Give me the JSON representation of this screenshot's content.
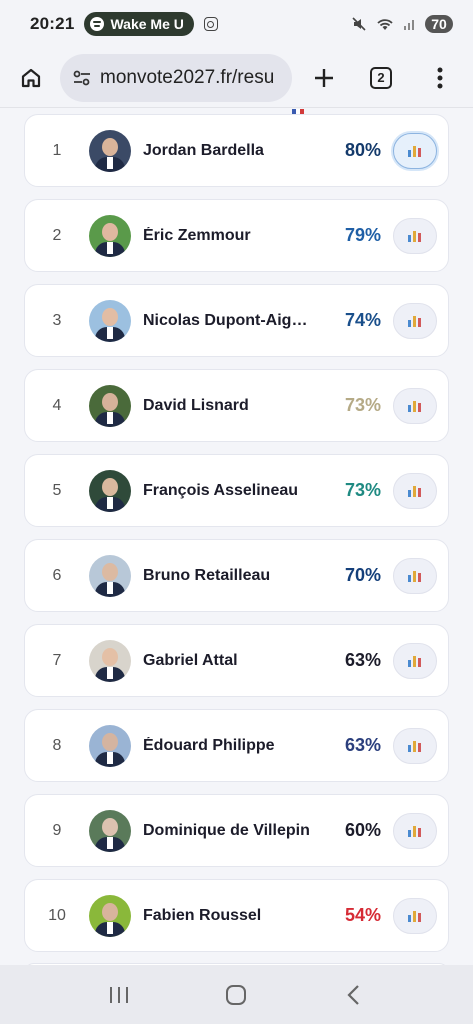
{
  "status": {
    "time": "20:21",
    "media_label": "Wake Me U",
    "battery": "70"
  },
  "browser": {
    "url": "monvote2027.fr/resu",
    "tab_count": "2"
  },
  "candidates": [
    {
      "rank": "1",
      "name": "Jordan Bardella",
      "percent": "80%",
      "color": "#143a6b"
    },
    {
      "rank": "2",
      "name": "Éric Zemmour",
      "percent": "79%",
      "color": "#1f5fa6"
    },
    {
      "rank": "3",
      "name": "Nicolas Dupont-Aign…",
      "percent": "74%",
      "color": "#1a4f8b"
    },
    {
      "rank": "4",
      "name": "David Lisnard",
      "percent": "73%",
      "color": "#b5aa86"
    },
    {
      "rank": "5",
      "name": "François Asselineau",
      "percent": "73%",
      "color": "#1f8a82"
    },
    {
      "rank": "6",
      "name": "Bruno Retailleau",
      "percent": "70%",
      "color": "#143f7a"
    },
    {
      "rank": "7",
      "name": "Gabriel Attal",
      "percent": "63%",
      "color": "#1c1c2a"
    },
    {
      "rank": "8",
      "name": "Édouard Philippe",
      "percent": "63%",
      "color": "#2b3f7d"
    },
    {
      "rank": "9",
      "name": "Dominique de Villepin",
      "percent": "60%",
      "color": "#1c1c2a"
    },
    {
      "rank": "10",
      "name": "Fabien Roussel",
      "percent": "54%",
      "color": "#d62b35"
    }
  ]
}
